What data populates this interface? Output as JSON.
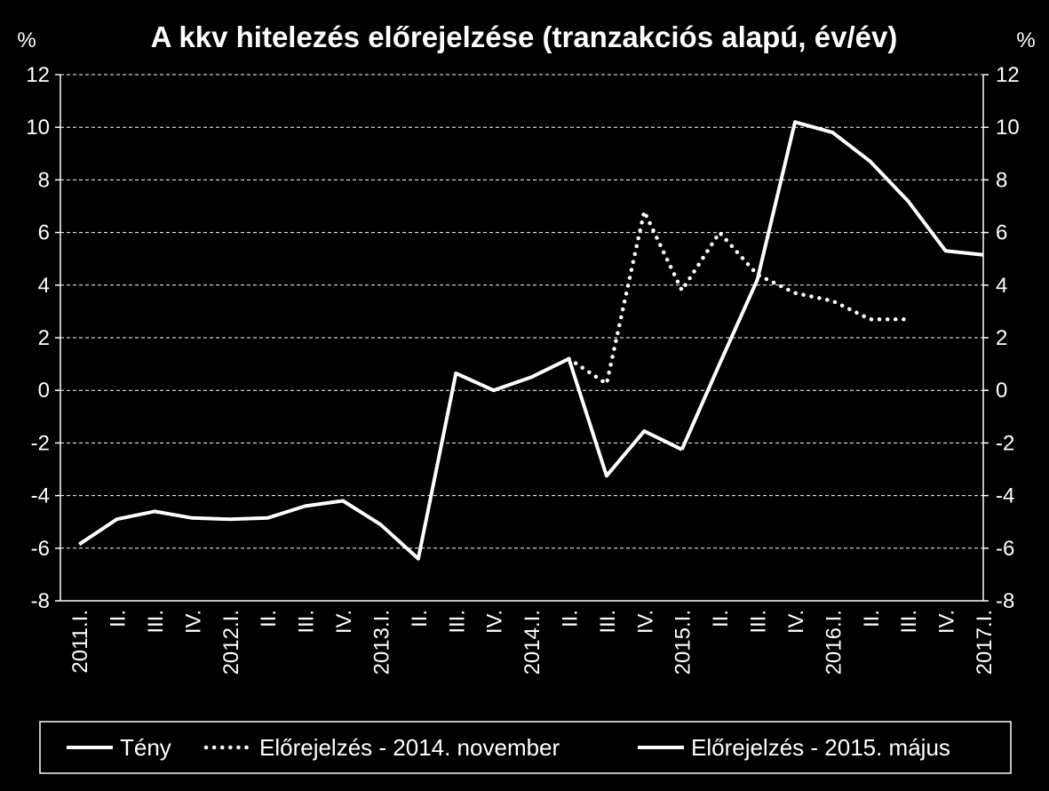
{
  "chart_data": {
    "type": "line",
    "title": "A kkv hitelezés előrejelzése (tranzakciós alapú, év/év)",
    "y_unit_left": "%",
    "y_unit_right": "%",
    "ylim": [
      -8,
      12
    ],
    "yticks": [
      -8,
      -6,
      -4,
      -2,
      0,
      2,
      4,
      6,
      8,
      10,
      12
    ],
    "grid": "horizontal dashed",
    "categories": [
      "2011.I.",
      "II.",
      "III.",
      "IV.",
      "2012.I.",
      "II.",
      "III.",
      "IV.",
      "2013.I.",
      "II.",
      "III.",
      "IV.",
      "2014.I.",
      "II.",
      "III.",
      "IV.",
      "2015.I.",
      "II.",
      "III.",
      "IV.",
      "2016.I.",
      "II.",
      "III.",
      "IV.",
      "2017.I."
    ],
    "series": [
      {
        "name": "Tény",
        "style": "solid",
        "values": [
          -5.85,
          -4.9,
          -4.6,
          -4.85,
          -4.9,
          -4.85,
          -4.4,
          -4.2,
          -5.1,
          -6.4,
          0.65,
          0.0,
          0.5,
          1.2,
          -3.25,
          -1.55,
          -2.25,
          null,
          null,
          null,
          null,
          null,
          null,
          null,
          null
        ]
      },
      {
        "name": "Előrejelzés - 2014. november",
        "style": "dotted",
        "values": [
          null,
          null,
          null,
          null,
          null,
          null,
          null,
          null,
          null,
          null,
          null,
          null,
          null,
          1.2,
          0.25,
          6.8,
          3.8,
          6.0,
          4.4,
          3.7,
          3.4,
          2.7,
          2.7,
          null,
          null
        ]
      },
      {
        "name": "Előrejelzés - 2015. május",
        "style": "solid",
        "values": [
          null,
          null,
          null,
          null,
          null,
          null,
          null,
          null,
          null,
          null,
          null,
          null,
          null,
          null,
          null,
          null,
          -2.25,
          1.0,
          4.2,
          10.2,
          9.8,
          8.7,
          7.2,
          5.3,
          5.15
        ]
      }
    ],
    "legend": {
      "position": "bottom",
      "items": [
        "Tény",
        "Előrejelzés - 2014. november",
        "Előrejelzés - 2015. május"
      ]
    },
    "colors": {
      "background": "#000000",
      "foreground": "#ffffff"
    }
  }
}
